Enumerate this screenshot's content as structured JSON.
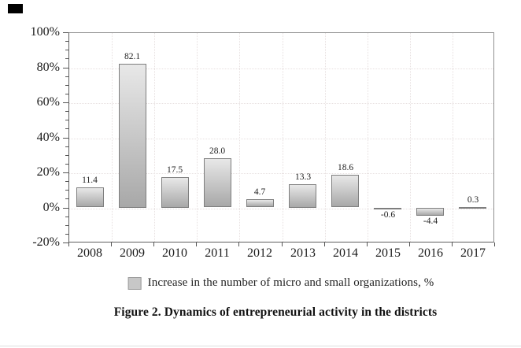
{
  "chart_data": {
    "type": "bar",
    "title": "",
    "categories": [
      "2008",
      "2009",
      "2010",
      "2011",
      "2012",
      "2013",
      "2014",
      "2015",
      "2016",
      "2017"
    ],
    "values": [
      11.4,
      82.1,
      17.5,
      28.0,
      4.7,
      13.3,
      18.6,
      -0.6,
      -4.4,
      0.3
    ],
    "value_labels": [
      "11.4",
      "82.1",
      "17.5",
      "28.0",
      "4.7",
      "13.3",
      "18.6",
      "-0.6",
      "-4.4",
      "0.3"
    ],
    "series_name": "Increase in the number of micro and small organizations, %",
    "xlabel": "",
    "ylabel": "",
    "ylim": [
      -20,
      100
    ],
    "yticks": [
      {
        "value": 100,
        "label": "100%"
      },
      {
        "value": 80,
        "label": "80%"
      },
      {
        "value": 60,
        "label": "60%"
      },
      {
        "value": 40,
        "label": "40%"
      },
      {
        "value": 20,
        "label": "20%"
      },
      {
        "value": 0,
        "label": "0%"
      },
      {
        "value": -20,
        "label": "-20%"
      }
    ],
    "minor_tick_step": 5,
    "grid": "dotted",
    "legend_position": "bottom"
  },
  "colors": {
    "bar_gradient_top": "#e8e8e8",
    "bar_gradient_bottom": "#a8a8a8",
    "bar_border": "#7e7e7e",
    "legend_swatch": "#c7c7c7",
    "legend_swatch_border": "#9a9a9a",
    "corner_mark": "#000000"
  },
  "legend": {
    "label": "Increase in the number of micro and small organizations, %"
  },
  "caption": "Figure 2. Dynamics of entrepreneurial activity in the districts"
}
